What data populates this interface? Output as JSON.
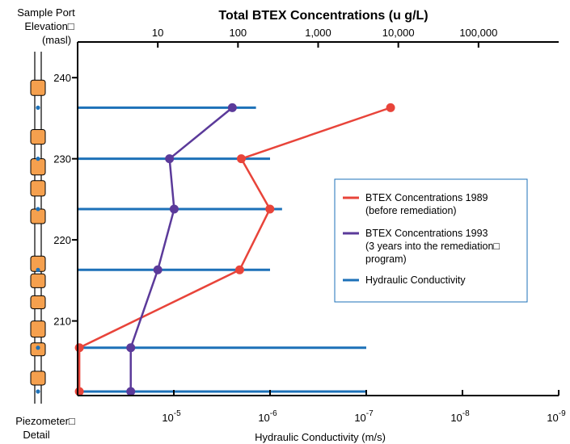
{
  "chart_data": {
    "type": "line",
    "title": "Total BTEX Concentrations (u g/L)",
    "ylabel_lines": [
      "Sample Port",
      "Elevation□",
      "(masl)"
    ],
    "xlabel_bottom": "Hydraulic Conductivity (m/s)",
    "top_axis": {
      "scale": "log",
      "range": [
        1,
        1000000
      ],
      "ticks": [
        {
          "value": 10,
          "label": "10"
        },
        {
          "value": 100,
          "label": "100"
        },
        {
          "value": 1000,
          "label": "1,000"
        },
        {
          "value": 10000,
          "label": "10,000"
        },
        {
          "value": 100000,
          "label": "100,000"
        }
      ]
    },
    "bottom_axis": {
      "scale": "log-reciprocal",
      "range": [
        0.0001,
        1e-09
      ],
      "ticks": [
        {
          "value": 1e-05,
          "base": "10",
          "exp": "-5"
        },
        {
          "value": 1e-06,
          "base": "10",
          "exp": "-6"
        },
        {
          "value": 1e-07,
          "base": "10",
          "exp": "-7"
        },
        {
          "value": 1e-08,
          "base": "10",
          "exp": "-8"
        },
        {
          "value": 1e-09,
          "base": "10",
          "exp": "-9"
        }
      ]
    },
    "y_axis": {
      "range": [
        200.8,
        244.4
      ],
      "ticks": [
        240,
        230,
        220,
        210
      ]
    },
    "grid": false,
    "legend_position": "right",
    "series": [
      {
        "name": "BTEX Concentrations 1989",
        "name_extra": "(before remediation)",
        "color": "#e8443a",
        "axis": "top",
        "points": [
          {
            "y": 236.3,
            "x": 8000
          },
          {
            "y": 230.0,
            "x": 110
          },
          {
            "y": 223.8,
            "x": 250
          },
          {
            "y": 216.3,
            "x": 105
          },
          {
            "y": 206.7,
            "x": 1.05
          },
          {
            "y": 201.3,
            "x": 1.05
          }
        ]
      },
      {
        "name": "BTEX Concentrations 1993",
        "name_extra_lines": [
          "(3 years into the remediation□",
          "program)"
        ],
        "color": "#5b3a9a",
        "axis": "top",
        "points": [
          {
            "y": 236.3,
            "x": 85
          },
          {
            "y": 230.0,
            "x": 14
          },
          {
            "y": 223.8,
            "x": 16
          },
          {
            "y": 216.3,
            "x": 10
          },
          {
            "y": 206.7,
            "x": 4.6
          },
          {
            "y": 201.3,
            "x": 4.6
          }
        ]
      },
      {
        "name": "Hydraulic Conductivity",
        "color": "#1d71b8",
        "axis": "bottom",
        "bars": [
          {
            "y": 236.3,
            "x": 1.4e-06
          },
          {
            "y": 230.0,
            "x": 1e-06
          },
          {
            "y": 223.8,
            "x": 7.5e-07
          },
          {
            "y": 216.3,
            "x": 1e-06
          },
          {
            "y": 206.7,
            "x": 1e-07
          },
          {
            "y": 201.3,
            "x": 1e-07
          }
        ]
      }
    ],
    "piezometer": {
      "label_lines": [
        "Piezometer□",
        "Detail"
      ],
      "packer_color": "#f5a04e",
      "port_color": "#1d71b8",
      "packers": [
        {
          "top": 237.8,
          "bottom": 239.7
        },
        {
          "top": 231.8,
          "bottom": 233.6
        },
        {
          "top": 228.0,
          "bottom": 230.0
        },
        {
          "top": 225.4,
          "bottom": 227.3
        },
        {
          "top": 222.0,
          "bottom": 223.8
        },
        {
          "top": 216.1,
          "bottom": 218.0
        },
        {
          "top": 214.1,
          "bottom": 215.8
        },
        {
          "top": 211.5,
          "bottom": 213.1
        },
        {
          "top": 208.0,
          "bottom": 210.0
        },
        {
          "top": 205.7,
          "bottom": 207.3
        },
        {
          "top": 202.1,
          "bottom": 203.8
        }
      ],
      "ports": [
        236.3,
        230.0,
        223.8,
        216.3,
        206.7,
        201.3
      ]
    }
  }
}
